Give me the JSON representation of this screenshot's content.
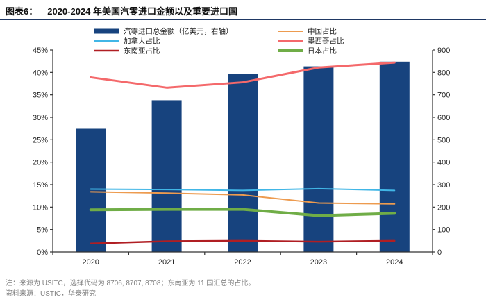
{
  "header": {
    "label": "图表6：",
    "title": "2020-2024 年美国汽零进口金额以及重要进口国"
  },
  "footer": {
    "note": "注：来源为 USITC，选择代码为 8706, 8707, 8708；东南亚为 11 国汇总的占比。",
    "source": "资料来源：USTIC，华泰研究"
  },
  "colors": {
    "title_rule": "#1F3864",
    "bar_navy": "#17437E",
    "china_orange": "#ED9B4F",
    "canada_blue": "#41B6E6",
    "mexico_pink": "#F4696B",
    "seasia_darkred": "#B01E23",
    "japan_green": "#70AD47",
    "axis": "#333333",
    "note_gray": "#808080"
  },
  "chart_data": {
    "type": "bar",
    "subtype": "combo-bar-line-dual-axis",
    "categories": [
      "2020",
      "2021",
      "2022",
      "2023",
      "2024"
    ],
    "series": [
      {
        "id": "total",
        "kind": "bar",
        "axis": "right",
        "name": "汽零进口总金额（亿美元，右轴）",
        "color": "#17437E",
        "values": [
          549,
          676,
          794,
          827,
          848
        ]
      },
      {
        "id": "china",
        "kind": "line",
        "axis": "left",
        "name": "中国占比",
        "color": "#ED9B4F",
        "stroke_width": 2,
        "values": [
          13.4,
          13.1,
          12.7,
          10.9,
          10.7
        ]
      },
      {
        "id": "canada",
        "kind": "line",
        "axis": "left",
        "name": "加拿大占比",
        "color": "#41B6E6",
        "stroke_width": 2,
        "values": [
          14.0,
          13.9,
          13.7,
          14.1,
          13.7
        ]
      },
      {
        "id": "mexico",
        "kind": "line",
        "axis": "left",
        "name": "墨西哥占比",
        "color": "#F4696B",
        "stroke_width": 3,
        "values": [
          38.9,
          36.6,
          37.8,
          41.1,
          42.2
        ]
      },
      {
        "id": "seasia",
        "kind": "line",
        "axis": "left",
        "name": "东南亚占比",
        "color": "#B01E23",
        "stroke_width": 2.5,
        "values": [
          1.9,
          2.4,
          2.5,
          2.3,
          2.5
        ]
      },
      {
        "id": "japan",
        "kind": "line",
        "axis": "left",
        "name": "日本占比",
        "color": "#70AD47",
        "stroke_width": 4,
        "values": [
          9.4,
          9.5,
          9.5,
          8.1,
          8.6
        ]
      }
    ],
    "left_axis": {
      "min": 0,
      "max": 45,
      "step": 5,
      "suffix": "%"
    },
    "right_axis": {
      "min": 0,
      "max": 900,
      "step": 100,
      "suffix": ""
    },
    "legend": {
      "columns": [
        [
          "total",
          "canada",
          "seasia"
        ],
        [
          "china",
          "mexico",
          "japan"
        ]
      ],
      "position": "top"
    },
    "grid": false,
    "title": "2020-2024 年美国汽零进口金额以及重要进口国"
  }
}
